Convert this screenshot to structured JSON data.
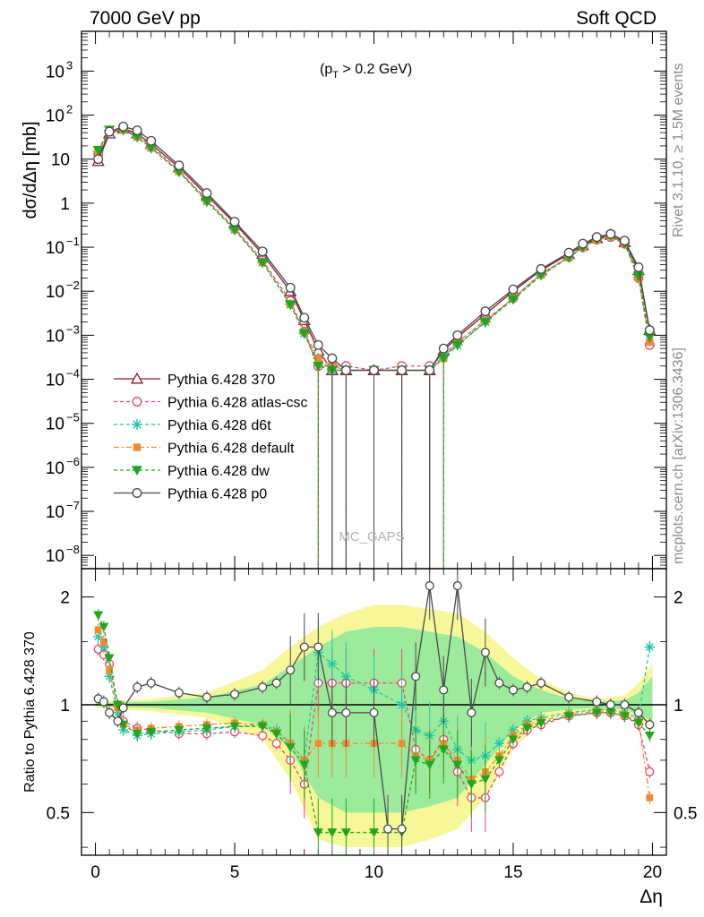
{
  "header": {
    "left": "7000 GeV pp",
    "right": "Soft QCD"
  },
  "side_text": {
    "top": "Rivet 3.1.10, ≥ 1.5M events",
    "bottom": "mcplots.cern.ch [arXiv:1306.3436]"
  },
  "watermark": "MC_GAPS",
  "chart_data": [
    {
      "type": "scatter",
      "panel": "main",
      "annotation": "(p_T > 0.2 GeV)",
      "annotation_main": "(p",
      "annotation_sub": "T",
      "annotation_rest": " > 0.2 GeV)",
      "ylabel": "dσ/dΔη [mb]",
      "xlim": [
        -0.5,
        20.5
      ],
      "ylim": [
        5e-09,
        8000
      ],
      "yscale": "log",
      "x_ticks": [
        0,
        5,
        10,
        15,
        20
      ],
      "y_ticks": [
        {
          "v": 1e-08,
          "m": "10",
          "e": "−8"
        },
        {
          "v": 1e-07,
          "m": "10",
          "e": "−7"
        },
        {
          "v": 1e-06,
          "m": "10",
          "e": "−6"
        },
        {
          "v": 1e-05,
          "m": "10",
          "e": "−5"
        },
        {
          "v": 0.0001,
          "m": "10",
          "e": "−4"
        },
        {
          "v": 0.001,
          "m": "10",
          "e": "−3"
        },
        {
          "v": 0.01,
          "m": "10",
          "e": "−2"
        },
        {
          "v": 0.1,
          "m": "10",
          "e": "−1"
        },
        {
          "v": 1,
          "m": "1",
          "e": ""
        },
        {
          "v": 10,
          "m": "10",
          "e": ""
        },
        {
          "v": 100,
          "m": "10",
          "e": "2"
        },
        {
          "v": 1000,
          "m": "10",
          "e": "3"
        }
      ],
      "legend_position": "lower-left",
      "series": [
        {
          "name": "Pythia 6.428 370",
          "color": "#8b1a2c",
          "marker": "triangle-open",
          "dash": "",
          "x": [
            0.1,
            0.5,
            1.0,
            1.5,
            2.0,
            3.0,
            4.0,
            5.0,
            6.0,
            7.0,
            7.5,
            8.0,
            8.5,
            9.0,
            10.0,
            11.0,
            12.0,
            12.5,
            13.0,
            14.0,
            15.0,
            16.0,
            17.0,
            17.5,
            18.0,
            18.5,
            19.0,
            19.5,
            19.9
          ],
          "y": [
            9,
            38,
            50,
            38,
            22,
            6.5,
            1.5,
            0.35,
            0.07,
            0.01,
            0.0022,
            0.00045,
            0.00016,
            0.00016,
            0.00016,
            0.00016,
            0.00016,
            0.00045,
            0.0009,
            0.003,
            0.01,
            0.03,
            0.07,
            0.11,
            0.16,
            0.19,
            0.13,
            0.03,
            0.0013
          ]
        },
        {
          "name": "Pythia 6.428 atlas-csc",
          "color": "#e8436e",
          "marker": "circle-open",
          "dash": "4,3",
          "x": [
            0.1,
            0.5,
            1.0,
            1.5,
            2.0,
            3.0,
            4.0,
            5.0,
            6.0,
            7.0,
            7.5,
            8.0,
            8.5,
            9.0,
            10.0,
            11.0,
            12.0,
            12.5,
            13.0,
            14.0,
            15.0,
            16.0,
            17.0,
            17.5,
            18.0,
            18.5,
            19.0,
            19.5,
            19.9
          ],
          "y": [
            13,
            42,
            48,
            35,
            20,
            5.5,
            1.2,
            0.27,
            0.05,
            0.006,
            0.0012,
            0.0002,
            0.0002,
            0.0002,
            0.00016,
            0.0002,
            0.0002,
            0.00035,
            0.0007,
            0.0022,
            0.007,
            0.025,
            0.06,
            0.1,
            0.15,
            0.17,
            0.12,
            0.02,
            0.0006
          ]
        },
        {
          "name": "Pythia 6.428 d6t",
          "color": "#1fc7a8",
          "marker": "star",
          "dash": "4,3",
          "x": [
            0.1,
            0.5,
            1.0,
            1.5,
            2.0,
            3.0,
            4.0,
            5.0,
            6.0,
            7.0,
            7.5,
            8.0,
            8.5,
            9.0,
            10.0,
            11.0,
            12.0,
            12.5,
            13.0,
            14.0,
            15.0,
            16.0,
            17.0,
            17.5,
            18.0,
            18.5,
            19.0,
            19.5,
            19.9
          ],
          "y": [
            15,
            45,
            46,
            32,
            18,
            5.2,
            1.1,
            0.25,
            0.045,
            0.005,
            0.0011,
            0.0003,
            0.00016,
            0.00016,
            0.00016,
            0.00016,
            0.00016,
            0.00035,
            0.0006,
            0.002,
            0.007,
            0.024,
            0.06,
            0.1,
            0.15,
            0.18,
            0.13,
            0.025,
            0.0012
          ]
        },
        {
          "name": "Pythia 6.428 default",
          "color": "#f28a30",
          "marker": "square",
          "dash": "6,3,2,3",
          "x": [
            0.1,
            0.5,
            1.0,
            1.5,
            2.0,
            3.0,
            4.0,
            5.0,
            6.0,
            7.0,
            7.5,
            8.0,
            8.5,
            9.0,
            10.0,
            11.0,
            12.0,
            12.5,
            13.0,
            14.0,
            15.0,
            16.0,
            17.0,
            17.5,
            18.0,
            18.5,
            19.0,
            19.5,
            19.9
          ],
          "y": [
            14,
            43,
            46,
            32,
            18,
            5.3,
            1.1,
            0.25,
            0.045,
            0.005,
            0.0012,
            0.0003,
            0.0002,
            0.00016,
            0.00016,
            0.00016,
            0.00016,
            0.0003,
            0.0007,
            0.0021,
            0.007,
            0.024,
            0.06,
            0.1,
            0.15,
            0.18,
            0.12,
            0.02,
            0.0007
          ]
        },
        {
          "name": "Pythia 6.428 dw",
          "color": "#1da81d",
          "marker": "triangle-down",
          "dash": "4,3",
          "x": [
            0.1,
            0.5,
            1.0,
            1.5,
            2.0,
            3.0,
            4.0,
            5.0,
            6.0,
            7.0,
            7.5,
            8.0,
            8.5,
            9.0,
            10.0,
            11.0,
            12.0,
            12.5,
            13.0,
            14.0,
            15.0,
            16.0,
            17.0,
            17.5,
            18.0,
            18.5,
            19.0,
            19.5,
            19.9
          ],
          "y": [
            16,
            46,
            46,
            32,
            18,
            5.2,
            1.1,
            0.25,
            0.045,
            0.005,
            0.0011,
            0.0002,
            0.00016,
            0.00016,
            0.00016,
            0.00016,
            0.00016,
            0.0003,
            0.0006,
            0.002,
            0.0065,
            0.023,
            0.058,
            0.1,
            0.15,
            0.18,
            0.12,
            0.022,
            0.0009
          ]
        },
        {
          "name": "Pythia 6.428 p0",
          "color": "#4a4a4a",
          "marker": "circle-open",
          "dash": "",
          "x": [
            0.1,
            0.5,
            1.0,
            1.5,
            2.0,
            3.0,
            4.0,
            5.0,
            6.0,
            7.0,
            7.5,
            8.0,
            8.5,
            9.0,
            10.0,
            11.0,
            12.0,
            12.5,
            13.0,
            14.0,
            15.0,
            16.0,
            17.0,
            17.5,
            18.0,
            18.5,
            19.0,
            19.5,
            19.9
          ],
          "y": [
            10,
            42,
            55,
            45,
            26,
            7.2,
            1.7,
            0.38,
            0.08,
            0.012,
            0.0025,
            0.0006,
            0.0003,
            0.00016,
            0.00016,
            0.00016,
            0.00016,
            0.0005,
            0.001,
            0.0035,
            0.011,
            0.032,
            0.075,
            0.12,
            0.17,
            0.2,
            0.14,
            0.035,
            0.0013
          ]
        }
      ]
    },
    {
      "type": "scatter",
      "panel": "ratio",
      "ylabel": "Ratio to Pythia 6.428 370",
      "xlabel": "Δη",
      "xlim": [
        -0.5,
        20.5
      ],
      "ylim": [
        0.38,
        2.4
      ],
      "yscale": "log",
      "reference": 1,
      "y_ticks": [
        0.5,
        1,
        2
      ],
      "y_tick_labels": [
        "0.5",
        "1",
        "2"
      ],
      "x_ticks": [
        0,
        5,
        10,
        15,
        20
      ],
      "x_tick_labels": [
        "0",
        "5",
        "10",
        "15",
        "20"
      ],
      "band_outer": {
        "x": [
          0,
          2,
          4,
          6,
          7,
          8,
          9,
          10,
          11,
          12,
          13,
          14,
          15,
          16,
          17,
          18,
          19,
          19.5,
          20
        ],
        "lo": [
          0.98,
          0.96,
          0.92,
          0.8,
          0.62,
          0.42,
          0.4,
          0.4,
          0.4,
          0.42,
          0.45,
          0.55,
          0.75,
          0.9,
          0.95,
          0.96,
          0.95,
          0.9,
          0.85
        ],
        "hi": [
          1.02,
          1.04,
          1.08,
          1.25,
          1.45,
          1.65,
          1.8,
          1.9,
          1.9,
          1.85,
          1.8,
          1.6,
          1.35,
          1.18,
          1.08,
          1.04,
          1.06,
          1.15,
          1.3
        ]
      },
      "band_inner": {
        "x": [
          0,
          2,
          4,
          6,
          7,
          8,
          9,
          10,
          11,
          12,
          13,
          14,
          15,
          16,
          17,
          18,
          19,
          19.5,
          20
        ],
        "lo": [
          0.99,
          0.98,
          0.95,
          0.88,
          0.75,
          0.55,
          0.5,
          0.5,
          0.5,
          0.52,
          0.55,
          0.68,
          0.85,
          0.95,
          0.97,
          0.98,
          0.97,
          0.94,
          0.9
        ],
        "hi": [
          1.01,
          1.02,
          1.05,
          1.14,
          1.28,
          1.45,
          1.6,
          1.65,
          1.65,
          1.6,
          1.55,
          1.4,
          1.2,
          1.1,
          1.04,
          1.02,
          1.03,
          1.08,
          1.2
        ]
      },
      "series": [
        {
          "name": "Pythia 6.428 atlas-csc",
          "color": "#e8436e",
          "marker": "circle-open",
          "dash": "4,3",
          "x": [
            0.1,
            0.3,
            0.5,
            0.8,
            1.0,
            1.5,
            2.0,
            3.0,
            4.0,
            5.0,
            6.0,
            6.5,
            7.0,
            7.5,
            8.0,
            8.5,
            9.0,
            10.0,
            11.0,
            11.5,
            12.0,
            12.5,
            13.0,
            13.5,
            14.0,
            14.5,
            15.0,
            15.5,
            16.0,
            17.0,
            18.0,
            18.5,
            19.0,
            19.5,
            19.9
          ],
          "y": [
            1.43,
            1.38,
            1.3,
            1.0,
            0.9,
            0.86,
            0.85,
            0.83,
            0.83,
            0.84,
            0.82,
            0.78,
            0.7,
            0.6,
            1.15,
            1.15,
            1.15,
            1.15,
            1.15,
            0.75,
            0.7,
            0.8,
            0.65,
            0.55,
            0.55,
            0.65,
            0.78,
            0.85,
            0.88,
            0.93,
            0.95,
            0.95,
            0.93,
            0.88,
            0.65
          ]
        },
        {
          "name": "Pythia 6.428 d6t",
          "color": "#1fc7a8",
          "marker": "star",
          "dash": "4,3",
          "x": [
            0.1,
            0.3,
            0.5,
            0.8,
            1.0,
            1.5,
            2.0,
            3.0,
            4.0,
            5.0,
            6.0,
            6.5,
            7.0,
            7.5,
            8.0,
            8.5,
            9.0,
            10.0,
            11.0,
            11.5,
            12.0,
            12.5,
            13.0,
            13.5,
            14.0,
            14.5,
            15.0,
            15.5,
            16.0,
            17.0,
            18.0,
            18.5,
            19.0,
            19.5,
            19.9
          ],
          "y": [
            1.55,
            1.45,
            1.2,
            0.95,
            0.85,
            0.82,
            0.83,
            0.84,
            0.85,
            0.87,
            0.88,
            0.85,
            0.78,
            0.7,
            1.4,
            1.3,
            1.2,
            1.1,
            1.0,
            0.85,
            0.82,
            0.9,
            0.75,
            0.7,
            0.72,
            0.78,
            0.85,
            0.9,
            0.92,
            0.95,
            0.97,
            0.97,
            0.95,
            0.92,
            1.45
          ]
        },
        {
          "name": "Pythia 6.428 default",
          "color": "#f28a30",
          "marker": "square",
          "dash": "6,3,2,3",
          "x": [
            0.1,
            0.3,
            0.5,
            0.8,
            1.0,
            1.5,
            2.0,
            3.0,
            4.0,
            5.0,
            6.0,
            6.5,
            7.0,
            7.5,
            8.0,
            8.5,
            9.0,
            10.0,
            11.0,
            11.5,
            12.0,
            12.5,
            13.0,
            13.5,
            14.0,
            14.5,
            15.0,
            15.5,
            16.0,
            17.0,
            18.0,
            18.5,
            19.0,
            19.5,
            19.9
          ],
          "y": [
            1.62,
            1.5,
            1.25,
            0.98,
            0.88,
            0.85,
            0.86,
            0.87,
            0.88,
            0.89,
            0.88,
            0.84,
            0.78,
            0.7,
            0.78,
            0.78,
            0.78,
            0.78,
            0.78,
            0.72,
            0.7,
            0.78,
            0.7,
            0.62,
            0.65,
            0.72,
            0.82,
            0.88,
            0.9,
            0.94,
            0.96,
            0.96,
            0.94,
            0.9,
            0.55
          ]
        },
        {
          "name": "Pythia 6.428 dw",
          "color": "#1da81d",
          "marker": "triangle-down",
          "dash": "4,3",
          "x": [
            0.1,
            0.3,
            0.5,
            0.8,
            1.0,
            1.5,
            2.0,
            3.0,
            4.0,
            5.0,
            6.0,
            6.5,
            7.0,
            7.5,
            8.0,
            8.5,
            9.0,
            10.0,
            11.0,
            11.5,
            12.0,
            12.5,
            13.0,
            13.5,
            14.0,
            14.5,
            15.0,
            15.5,
            16.0,
            17.0,
            18.0,
            18.5,
            19.0,
            19.5,
            19.9
          ],
          "y": [
            1.78,
            1.65,
            1.35,
            1.0,
            0.88,
            0.83,
            0.84,
            0.85,
            0.86,
            0.87,
            0.87,
            0.83,
            0.76,
            0.68,
            0.44,
            0.44,
            0.44,
            0.44,
            0.44,
            0.7,
            0.68,
            0.75,
            0.68,
            0.6,
            0.62,
            0.7,
            0.8,
            0.86,
            0.89,
            0.93,
            0.95,
            0.95,
            0.93,
            0.89,
            0.82
          ]
        },
        {
          "name": "Pythia 6.428 p0",
          "color": "#4a4a4a",
          "marker": "circle-open",
          "dash": "",
          "x": [
            0.1,
            0.3,
            0.5,
            0.8,
            1.0,
            1.5,
            2.0,
            3.0,
            4.0,
            5.0,
            6.0,
            6.5,
            7.0,
            7.5,
            8.0,
            8.5,
            9.0,
            10.0,
            10.5,
            11.0,
            11.5,
            12.0,
            12.5,
            13.0,
            13.5,
            14.0,
            14.5,
            15.0,
            15.5,
            16.0,
            17.0,
            18.0,
            18.5,
            19.0,
            19.5,
            19.9
          ],
          "y": [
            1.04,
            1.02,
            0.95,
            0.9,
            0.98,
            1.12,
            1.15,
            1.08,
            1.05,
            1.07,
            1.12,
            1.15,
            1.25,
            1.45,
            1.45,
            0.95,
            0.95,
            0.95,
            0.45,
            0.45,
            1.2,
            2.15,
            1.1,
            2.15,
            0.95,
            1.4,
            1.15,
            1.1,
            1.12,
            1.15,
            1.05,
            1.02,
            1.0,
            1.0,
            0.95,
            0.88
          ]
        }
      ]
    }
  ]
}
